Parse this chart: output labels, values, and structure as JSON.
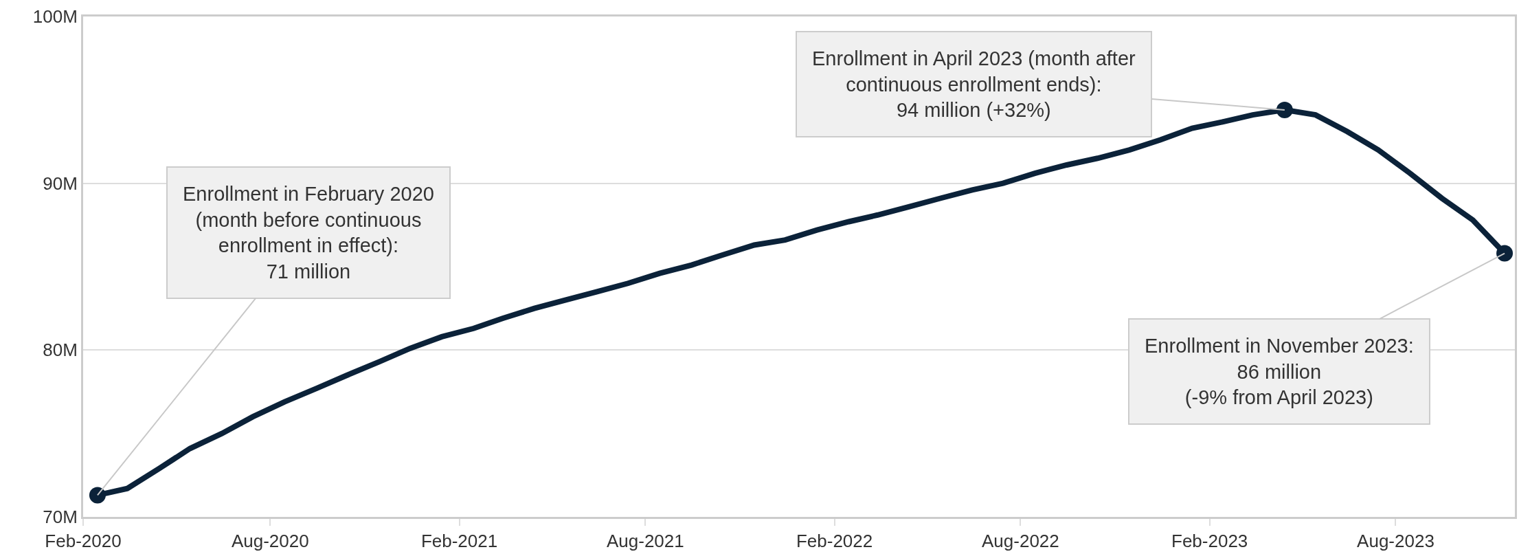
{
  "chart_data": {
    "type": "line",
    "x": [
      "2020-02-15",
      "2020-03-15",
      "2020-04-15",
      "2020-05-15",
      "2020-06-15",
      "2020-07-15",
      "2020-08-15",
      "2020-09-15",
      "2020-10-15",
      "2020-11-15",
      "2020-12-15",
      "2021-01-15",
      "2021-02-15",
      "2021-03-15",
      "2021-04-15",
      "2021-05-15",
      "2021-06-15",
      "2021-07-15",
      "2021-08-15",
      "2021-09-15",
      "2021-10-15",
      "2021-11-15",
      "2021-12-15",
      "2022-01-15",
      "2022-02-15",
      "2022-03-15",
      "2022-04-15",
      "2022-05-15",
      "2022-06-15",
      "2022-07-15",
      "2022-08-15",
      "2022-09-15",
      "2022-10-15",
      "2022-11-15",
      "2022-12-15",
      "2023-01-15",
      "2023-02-15",
      "2023-03-15",
      "2023-04-15",
      "2023-05-15",
      "2023-06-15",
      "2023-07-15",
      "2023-08-15",
      "2023-09-15",
      "2023-10-15",
      "2023-11-15"
    ],
    "series": [
      {
        "color": "#0b2239",
        "values": [
          71.3,
          71.7,
          72.9,
          74.1,
          75.0,
          76.0,
          76.9,
          77.7,
          78.5,
          79.3,
          80.1,
          80.8,
          81.3,
          81.9,
          82.5,
          83.0,
          83.5,
          84.0,
          84.6,
          85.1,
          85.7,
          86.3,
          86.6,
          87.2,
          87.7,
          88.1,
          88.6,
          89.1,
          89.6,
          90.0,
          90.6,
          91.1,
          91.5,
          92.0,
          92.6,
          93.3,
          93.7,
          94.1,
          94.4,
          94.1,
          93.1,
          92.0,
          90.6,
          89.1,
          87.8,
          85.8
        ]
      }
    ],
    "xlim": [
      "2020-02-01",
      "2023-11-25"
    ],
    "xticks": [
      {
        "value": "2020-02-01",
        "label": "Feb-2020"
      },
      {
        "value": "2020-08-01",
        "label": "Aug-2020"
      },
      {
        "value": "2021-02-01",
        "label": "Feb-2021"
      },
      {
        "value": "2021-08-01",
        "label": "Aug-2021"
      },
      {
        "value": "2022-02-01",
        "label": "Feb-2022"
      },
      {
        "value": "2022-08-01",
        "label": "Aug-2022"
      },
      {
        "value": "2023-02-01",
        "label": "Feb-2023"
      },
      {
        "value": "2023-08-01",
        "label": "Aug-2023"
      }
    ],
    "ylim": [
      70,
      100
    ],
    "yticks": [
      {
        "value": 70,
        "label": "70M"
      },
      {
        "value": 80,
        "label": "80M"
      },
      {
        "value": 90,
        "label": "90M"
      },
      {
        "value": 100,
        "label": "100M"
      }
    ],
    "grid": "y",
    "marker": "none",
    "line_style": "solid",
    "annotations": [
      {
        "text": "Enrollment in February 2020\n(month before continuous\nenrollment in effect):\n71 million",
        "x": "2020-02-15",
        "y": 71.3
      },
      {
        "text": "Enrollment in April 2023 (month after\ncontinuous enrollment ends):\n94 million (+32%)",
        "x": "2023-04-15",
        "y": 94.4
      },
      {
        "text": "Enrollment in November 2023:\n86 million\n(-9% from April 2023)",
        "x": "2023-11-15",
        "y": 85.8
      }
    ]
  }
}
